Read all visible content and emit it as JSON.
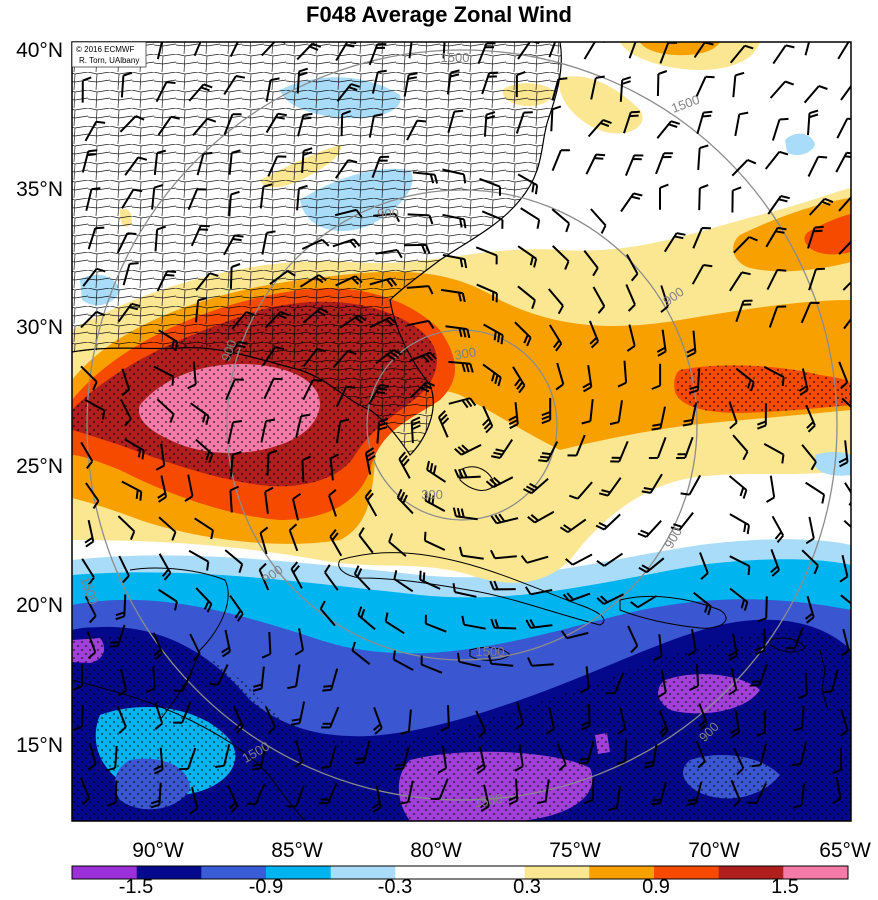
{
  "title": "F048 Average Zonal Wind",
  "credit": {
    "line1": "© 2016 ECMWF",
    "line2": "R. Torn, UAlbany"
  },
  "lat_labels": [
    "40°N",
    "35°N",
    "30°N",
    "25°N",
    "20°N",
    "15°N"
  ],
  "lon_labels": [
    "90°W",
    "85°W",
    "80°W",
    "75°W",
    "70°W",
    "65°W"
  ],
  "contour_labels": [
    "1500",
    "1500",
    "900",
    "900",
    "300",
    "300",
    "900",
    "1500",
    "900",
    "900",
    "1500",
    "1500",
    "900",
    "1500"
  ],
  "colorbar": {
    "labels": [
      "-1.5",
      "-0.9",
      "-0.3",
      "0.3",
      "0.9",
      "1.5"
    ],
    "colors": [
      "#9b30d9",
      "#050a8c",
      "#3a5cd6",
      "#00b4f0",
      "#a8dcf8",
      "#ffffff",
      "#ffffff",
      "#fbe692",
      "#f7a000",
      "#f54a00",
      "#b01e1e",
      "#f47aa8"
    ]
  },
  "colors": {
    "purple": "#a040d8",
    "navy": "#04088a",
    "blue": "#3a56d0",
    "cyan": "#00b4f0",
    "lightblue": "#a8dcf8",
    "yellow": "#fbe692",
    "orange": "#f7a000",
    "redorange": "#f54a00",
    "darkred": "#b01e1e",
    "pink": "#f47aa8",
    "contour": "#8c8c8c"
  }
}
